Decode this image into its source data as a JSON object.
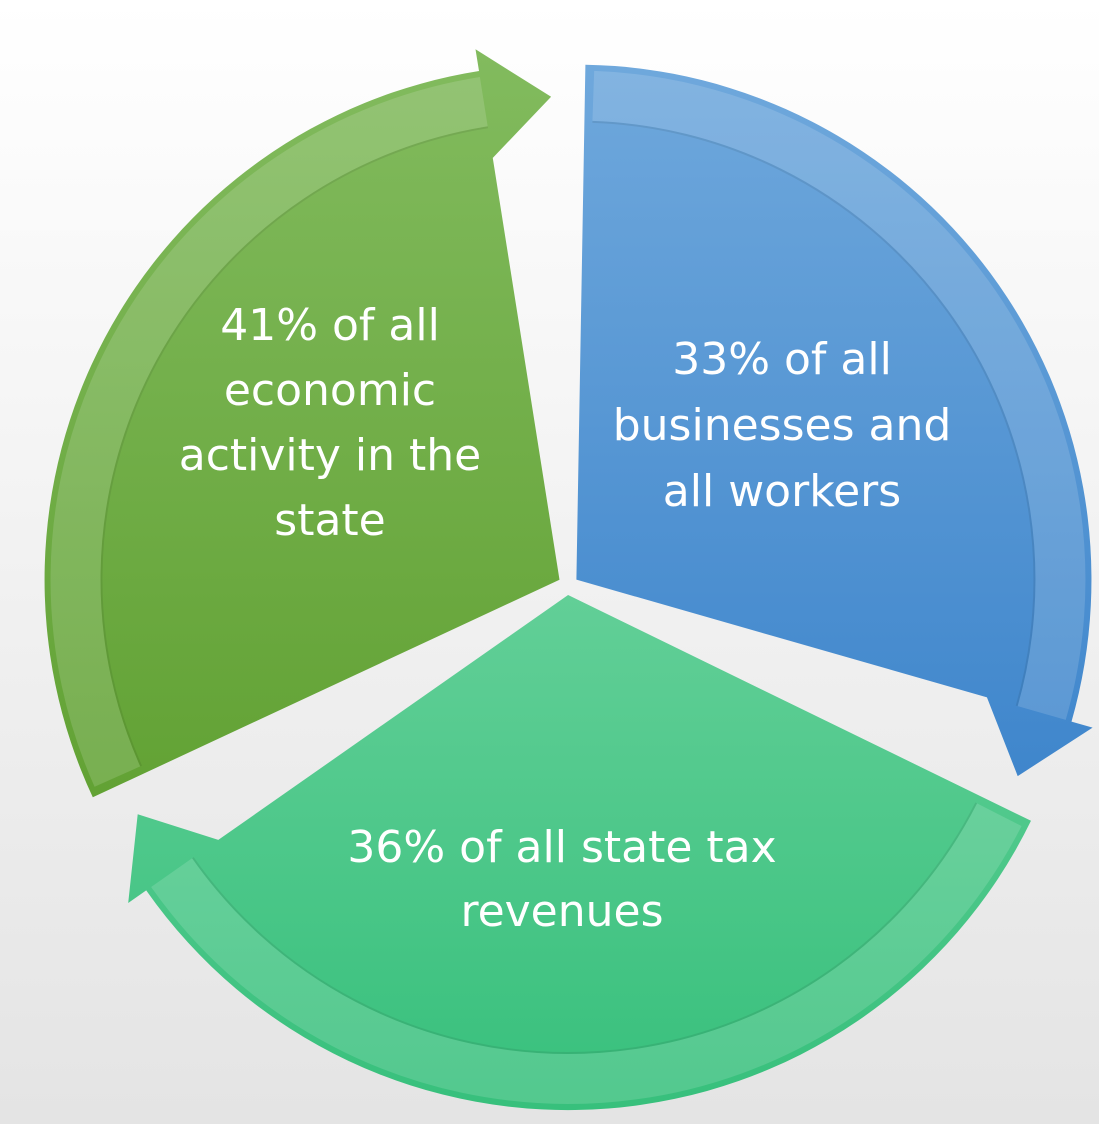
{
  "segments": [
    {
      "lines": [
        "33% of all",
        "businesses and",
        "all workers"
      ]
    },
    {
      "lines": [
        "36% of all state tax",
        "revenues"
      ]
    },
    {
      "lines": [
        "41% of all",
        "economic",
        "activity in the",
        "state"
      ]
    }
  ]
}
